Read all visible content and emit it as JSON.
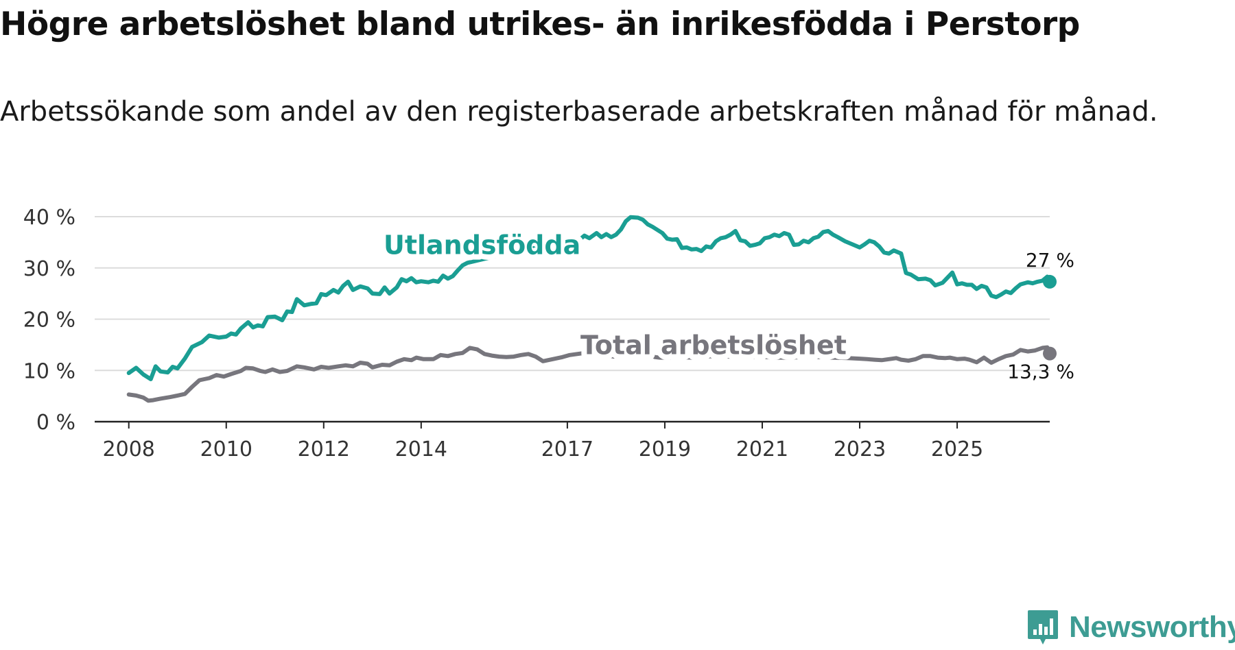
{
  "title": "Högre arbetslöshet bland utrikes- än inrikesfödda i Perstorp",
  "subtitle": "Arbetssökande som andel av den registerbaserade arbetskraften månad för månad.",
  "brand": {
    "name": "Newsworthy",
    "icon": "bar-chart-icon",
    "color": "#3d9c93"
  },
  "chart_data": {
    "type": "line",
    "xlabel": "",
    "ylabel": "",
    "xlim": [
      2007.3,
      2026.9
    ],
    "ylim": [
      0,
      40
    ],
    "grid": true,
    "y_ticks": [
      0,
      10,
      20,
      30,
      40
    ],
    "y_tick_labels": [
      "0 %",
      "10 %",
      "20 %",
      "30 %",
      "40 %"
    ],
    "x_ticks": [
      2008,
      2010,
      2012,
      2014,
      2017,
      2019,
      2021,
      2023,
      2025
    ],
    "x_tick_labels": [
      "2008",
      "2010",
      "2012",
      "2014",
      "2017",
      "2019",
      "2021",
      "2023",
      "2025"
    ],
    "series": [
      {
        "name": "Utlandsfödda",
        "color": "#1a9e93",
        "end_label": "27 %",
        "points": [
          [
            2008.0,
            9.5
          ],
          [
            2008.15,
            10.5
          ],
          [
            2008.3,
            9.2
          ],
          [
            2008.45,
            8.3
          ],
          [
            2008.55,
            10.8
          ],
          [
            2008.65,
            9.8
          ],
          [
            2008.8,
            9.6
          ],
          [
            2008.9,
            10.7
          ],
          [
            2009.0,
            10.4
          ],
          [
            2009.15,
            12.3
          ],
          [
            2009.3,
            14.6
          ],
          [
            2009.5,
            15.5
          ],
          [
            2009.65,
            16.8
          ],
          [
            2009.85,
            16.4
          ],
          [
            2010.0,
            16.6
          ],
          [
            2010.1,
            17.2
          ],
          [
            2010.2,
            17.0
          ],
          [
            2010.3,
            18.2
          ],
          [
            2010.45,
            19.4
          ],
          [
            2010.55,
            18.4
          ],
          [
            2010.65,
            18.8
          ],
          [
            2010.75,
            18.6
          ],
          [
            2010.85,
            20.4
          ],
          [
            2011.0,
            20.5
          ],
          [
            2011.15,
            19.8
          ],
          [
            2011.25,
            21.5
          ],
          [
            2011.35,
            21.4
          ],
          [
            2011.45,
            23.9
          ],
          [
            2011.6,
            22.7
          ],
          [
            2011.75,
            23.0
          ],
          [
            2011.85,
            23.1
          ],
          [
            2011.95,
            24.9
          ],
          [
            2012.05,
            24.7
          ],
          [
            2012.2,
            25.7
          ],
          [
            2012.3,
            25.2
          ],
          [
            2012.4,
            26.5
          ],
          [
            2012.5,
            27.3
          ],
          [
            2012.6,
            25.7
          ],
          [
            2012.75,
            26.4
          ],
          [
            2012.9,
            26.0
          ],
          [
            2013.0,
            25.0
          ],
          [
            2013.15,
            24.9
          ],
          [
            2013.25,
            26.2
          ],
          [
            2013.35,
            25.0
          ],
          [
            2013.5,
            26.2
          ],
          [
            2013.6,
            27.8
          ],
          [
            2013.7,
            27.4
          ],
          [
            2013.8,
            28.0
          ],
          [
            2013.9,
            27.2
          ],
          [
            2014.0,
            27.4
          ],
          [
            2014.15,
            27.2
          ],
          [
            2014.25,
            27.5
          ],
          [
            2014.35,
            27.3
          ],
          [
            2014.45,
            28.5
          ],
          [
            2014.55,
            27.9
          ],
          [
            2014.65,
            28.4
          ],
          [
            2014.75,
            29.5
          ],
          [
            2014.85,
            30.5
          ],
          [
            2014.95,
            31.0
          ],
          [
            2017.1,
            35.8
          ],
          [
            2017.25,
            35.5
          ],
          [
            2017.35,
            36.3
          ],
          [
            2017.45,
            35.8
          ],
          [
            2017.6,
            36.8
          ],
          [
            2017.7,
            36.0
          ],
          [
            2017.8,
            36.6
          ],
          [
            2017.9,
            36.0
          ],
          [
            2018.0,
            36.5
          ],
          [
            2018.1,
            37.5
          ],
          [
            2018.2,
            39.1
          ],
          [
            2018.3,
            39.9
          ],
          [
            2018.45,
            39.8
          ],
          [
            2018.55,
            39.4
          ],
          [
            2018.65,
            38.5
          ],
          [
            2018.75,
            38.0
          ],
          [
            2018.85,
            37.4
          ],
          [
            2018.95,
            36.8
          ],
          [
            2019.05,
            35.7
          ],
          [
            2019.15,
            35.5
          ],
          [
            2019.25,
            35.6
          ],
          [
            2019.35,
            33.9
          ],
          [
            2019.45,
            34.0
          ],
          [
            2019.55,
            33.6
          ],
          [
            2019.65,
            33.7
          ],
          [
            2019.75,
            33.3
          ],
          [
            2019.85,
            34.2
          ],
          [
            2019.95,
            34.0
          ],
          [
            2020.05,
            35.2
          ],
          [
            2020.15,
            35.8
          ],
          [
            2020.25,
            36.0
          ],
          [
            2020.35,
            36.5
          ],
          [
            2020.45,
            37.2
          ],
          [
            2020.55,
            35.4
          ],
          [
            2020.65,
            35.2
          ],
          [
            2020.75,
            34.3
          ],
          [
            2020.85,
            34.5
          ],
          [
            2020.95,
            34.8
          ],
          [
            2021.05,
            35.8
          ],
          [
            2021.15,
            36.0
          ],
          [
            2021.25,
            36.5
          ],
          [
            2021.35,
            36.2
          ],
          [
            2021.45,
            36.8
          ],
          [
            2021.55,
            36.5
          ],
          [
            2021.65,
            34.5
          ],
          [
            2021.75,
            34.6
          ],
          [
            2021.85,
            35.3
          ],
          [
            2021.95,
            35.0
          ],
          [
            2022.05,
            35.8
          ],
          [
            2022.15,
            36.1
          ],
          [
            2022.25,
            37.0
          ],
          [
            2022.35,
            37.2
          ],
          [
            2022.45,
            36.5
          ],
          [
            2022.55,
            36.0
          ],
          [
            2022.7,
            35.2
          ],
          [
            2022.85,
            34.6
          ],
          [
            2023.0,
            34.0
          ],
          [
            2023.1,
            34.6
          ],
          [
            2023.2,
            35.3
          ],
          [
            2023.3,
            35.0
          ],
          [
            2023.4,
            34.2
          ],
          [
            2023.5,
            33.0
          ],
          [
            2023.6,
            32.8
          ],
          [
            2023.7,
            33.4
          ],
          [
            2023.85,
            32.8
          ],
          [
            2023.95,
            29.0
          ],
          [
            2024.05,
            28.7
          ],
          [
            2024.2,
            27.8
          ],
          [
            2024.35,
            27.9
          ],
          [
            2024.45,
            27.6
          ],
          [
            2024.55,
            26.6
          ],
          [
            2024.7,
            27.1
          ],
          [
            2024.8,
            28.1
          ],
          [
            2024.9,
            29.1
          ],
          [
            2025.0,
            26.8
          ],
          [
            2025.1,
            27.0
          ],
          [
            2025.2,
            26.7
          ],
          [
            2025.3,
            26.7
          ],
          [
            2025.4,
            25.9
          ],
          [
            2025.5,
            26.5
          ],
          [
            2025.6,
            26.2
          ],
          [
            2025.7,
            24.6
          ],
          [
            2025.8,
            24.3
          ],
          [
            2025.9,
            24.8
          ],
          [
            2026.0,
            25.4
          ],
          [
            2026.1,
            25.1
          ],
          [
            2026.2,
            26.0
          ],
          [
            2026.3,
            26.8
          ],
          [
            2026.45,
            27.2
          ],
          [
            2026.55,
            27.0
          ],
          [
            2026.65,
            27.3
          ],
          [
            2026.75,
            27.5
          ],
          [
            2026.85,
            28.3
          ],
          [
            2026.9,
            27.3
          ]
        ]
      },
      {
        "name": "Total arbetslöshet",
        "color": "#77767d",
        "end_label": "13,3 %",
        "points": [
          [
            2008.0,
            5.3
          ],
          [
            2008.15,
            5.1
          ],
          [
            2008.3,
            4.7
          ],
          [
            2008.4,
            4.1
          ],
          [
            2008.5,
            4.2
          ],
          [
            2008.65,
            4.5
          ],
          [
            2008.85,
            4.8
          ],
          [
            2009.0,
            5.1
          ],
          [
            2009.15,
            5.4
          ],
          [
            2009.3,
            6.8
          ],
          [
            2009.45,
            8.1
          ],
          [
            2009.65,
            8.5
          ],
          [
            2009.8,
            9.1
          ],
          [
            2009.95,
            8.8
          ],
          [
            2010.1,
            9.3
          ],
          [
            2010.3,
            9.9
          ],
          [
            2010.4,
            10.5
          ],
          [
            2010.55,
            10.4
          ],
          [
            2010.7,
            9.9
          ],
          [
            2010.8,
            9.7
          ],
          [
            2010.95,
            10.2
          ],
          [
            2011.1,
            9.7
          ],
          [
            2011.25,
            9.9
          ],
          [
            2011.45,
            10.8
          ],
          [
            2011.6,
            10.6
          ],
          [
            2011.8,
            10.2
          ],
          [
            2011.95,
            10.7
          ],
          [
            2012.1,
            10.5
          ],
          [
            2012.3,
            10.8
          ],
          [
            2012.45,
            11.0
          ],
          [
            2012.6,
            10.8
          ],
          [
            2012.75,
            11.5
          ],
          [
            2012.9,
            11.3
          ],
          [
            2013.0,
            10.6
          ],
          [
            2013.2,
            11.1
          ],
          [
            2013.35,
            11.0
          ],
          [
            2013.5,
            11.7
          ],
          [
            2013.65,
            12.2
          ],
          [
            2013.8,
            12.0
          ],
          [
            2013.9,
            12.5
          ],
          [
            2014.05,
            12.2
          ],
          [
            2014.25,
            12.2
          ],
          [
            2014.4,
            13.0
          ],
          [
            2014.55,
            12.8
          ],
          [
            2014.7,
            13.2
          ],
          [
            2014.85,
            13.4
          ],
          [
            2015.0,
            14.4
          ],
          [
            2015.15,
            14.1
          ],
          [
            2015.3,
            13.2
          ],
          [
            2015.45,
            12.9
          ],
          [
            2015.6,
            12.7
          ],
          [
            2015.75,
            12.6
          ],
          [
            2015.9,
            12.7
          ],
          [
            2016.05,
            13.0
          ],
          [
            2016.2,
            13.2
          ],
          [
            2016.35,
            12.7
          ],
          [
            2016.5,
            11.8
          ],
          [
            2016.7,
            12.2
          ],
          [
            2016.9,
            12.6
          ],
          [
            2017.05,
            13.0
          ],
          [
            2017.2,
            13.2
          ],
          [
            2017.35,
            13.4
          ],
          [
            2017.5,
            13.1
          ],
          [
            2017.65,
            13.3
          ],
          [
            2017.8,
            13.0
          ],
          [
            2017.95,
            12.7
          ],
          [
            2018.1,
            13.0
          ],
          [
            2018.25,
            14.1
          ],
          [
            2018.4,
            13.7
          ],
          [
            2018.55,
            13.6
          ],
          [
            2018.7,
            13.0
          ],
          [
            2018.8,
            12.6
          ],
          [
            2018.9,
            12.5
          ],
          [
            2019.05,
            12.5
          ],
          [
            2019.3,
            12.6
          ],
          [
            2019.55,
            12.5
          ],
          [
            2019.8,
            12.7
          ],
          [
            2020.05,
            12.8
          ],
          [
            2020.35,
            12.7
          ],
          [
            2020.65,
            12.6
          ],
          [
            2020.95,
            12.7
          ],
          [
            2021.25,
            12.5
          ],
          [
            2021.55,
            12.5
          ],
          [
            2021.85,
            12.6
          ],
          [
            2022.15,
            12.6
          ],
          [
            2022.45,
            12.5
          ],
          [
            2022.75,
            12.4
          ],
          [
            2023.0,
            12.3
          ],
          [
            2023.15,
            12.2
          ],
          [
            2023.3,
            12.1
          ],
          [
            2023.45,
            12.0
          ],
          [
            2023.6,
            12.2
          ],
          [
            2023.75,
            12.4
          ],
          [
            2023.85,
            12.1
          ],
          [
            2024.0,
            11.9
          ],
          [
            2024.15,
            12.2
          ],
          [
            2024.3,
            12.8
          ],
          [
            2024.45,
            12.8
          ],
          [
            2024.6,
            12.5
          ],
          [
            2024.75,
            12.4
          ],
          [
            2024.85,
            12.5
          ],
          [
            2025.0,
            12.2
          ],
          [
            2025.15,
            12.3
          ],
          [
            2025.25,
            12.1
          ],
          [
            2025.4,
            11.6
          ],
          [
            2025.55,
            12.5
          ],
          [
            2025.7,
            11.5
          ],
          [
            2025.85,
            12.2
          ],
          [
            2026.0,
            12.8
          ],
          [
            2026.15,
            13.1
          ],
          [
            2026.3,
            14.0
          ],
          [
            2026.45,
            13.7
          ],
          [
            2026.6,
            13.9
          ],
          [
            2026.75,
            14.4
          ],
          [
            2026.85,
            14.5
          ],
          [
            2026.9,
            13.3
          ]
        ]
      }
    ],
    "annotations": [
      {
        "text": "Utlandsfödda",
        "series": "Utlandsfödda",
        "anchor_x": 2015.25,
        "anchor_y": 32.7
      },
      {
        "text": "Total arbetslöshet",
        "series": "Total arbetslöshet",
        "anchor_x": 2020.0,
        "anchor_y": 13.2
      },
      {
        "text": "27 %",
        "series": "Utlandsfödda",
        "placement": "above-end"
      },
      {
        "text": "13,3 %",
        "series": "Total arbetslöshet",
        "placement": "below-end"
      }
    ]
  }
}
